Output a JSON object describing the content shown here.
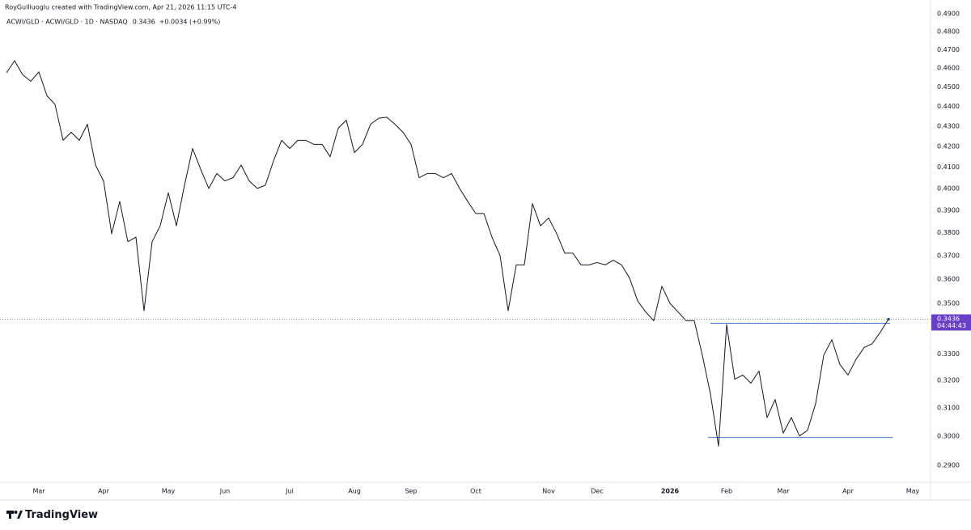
{
  "header": {
    "attribution": "RoyGulliuoglu created with TradingView.com, Apr 21, 2026 11:15 UTC-4"
  },
  "footer": {
    "logo": "TradingView"
  },
  "chart_data": {
    "type": "line",
    "legend_symbol": "ACWI/GLD · ACWI/GLD · 1D · NASDAQ",
    "legend_change": "+0.0034 (+0.99%)",
    "countdown": "04:44:43",
    "log_scale": true,
    "grid": false,
    "categories": [
      null,
      null,
      null,
      null,
      "Mar",
      null,
      null,
      null,
      null,
      null,
      null,
      null,
      "Apr",
      null,
      null,
      null,
      null,
      null,
      null,
      null,
      "May",
      null,
      null,
      null,
      null,
      null,
      null,
      "Jun",
      null,
      null,
      null,
      null,
      null,
      null,
      null,
      "Jul",
      null,
      null,
      null,
      null,
      null,
      null,
      null,
      "Aug",
      null,
      null,
      null,
      null,
      null,
      null,
      "Sep",
      null,
      null,
      null,
      null,
      null,
      null,
      null,
      "Oct",
      null,
      null,
      null,
      null,
      null,
      null,
      null,
      null,
      "Nov",
      null,
      null,
      null,
      null,
      null,
      "Dec",
      null,
      null,
      null,
      null,
      null,
      null,
      null,
      null,
      "2026",
      null,
      null,
      null,
      null,
      null,
      null,
      "Feb",
      null,
      null,
      null,
      null,
      null,
      null,
      "Mar",
      null,
      null,
      null,
      null,
      null,
      null,
      null,
      "Apr",
      null,
      null,
      null,
      null,
      null,
      null,
      null,
      "May"
    ],
    "series": [
      {
        "name": "ACWI/GLD",
        "color": "#131722",
        "values": [
          0.4575,
          0.464,
          0.4565,
          0.453,
          0.458,
          0.4455,
          0.441,
          0.423,
          0.427,
          0.423,
          0.431,
          0.411,
          0.4035,
          0.3795,
          0.394,
          0.376,
          0.378,
          0.347,
          0.376,
          0.383,
          0.398,
          0.383,
          0.4015,
          0.419,
          0.409,
          0.4,
          0.407,
          0.4035,
          0.405,
          0.411,
          0.4035,
          0.4,
          0.4015,
          0.413,
          0.423,
          0.419,
          0.423,
          0.423,
          0.421,
          0.421,
          0.415,
          0.429,
          0.433,
          0.417,
          0.421,
          0.431,
          0.434,
          0.4345,
          0.431,
          0.427,
          0.421,
          0.405,
          0.407,
          0.407,
          0.405,
          0.407,
          0.4,
          0.394,
          0.3885,
          0.3885,
          0.378,
          0.37,
          0.347,
          0.366,
          0.366,
          0.393,
          0.383,
          0.3865,
          0.3795,
          0.371,
          0.371,
          0.366,
          0.366,
          0.367,
          0.366,
          0.368,
          0.366,
          0.3605,
          0.351,
          0.3465,
          0.343,
          0.357,
          0.35,
          0.3465,
          0.343,
          0.343,
          0.3295,
          0.315,
          0.2965,
          0.3415,
          0.3205,
          0.322,
          0.319,
          0.3235,
          0.3065,
          0.313,
          0.301,
          0.3065,
          0.3,
          0.302,
          0.3115,
          0.3295,
          0.3355,
          0.326,
          0.322,
          0.328,
          0.3325,
          0.334,
          0.3385,
          0.3436,
          null,
          null,
          null
        ]
      }
    ],
    "levels": [
      {
        "value": 0.342,
        "color": "#4a72d4"
      },
      {
        "value": 0.2995,
        "color": "#4a72d4"
      }
    ],
    "badge_color": "#6a3fc7",
    "ylim": [
      0.2843,
      0.4979
    ],
    "yticks": [
      {
        "value": 0.49,
        "label": "0.4900"
      },
      {
        "value": 0.48,
        "label": "0.4800"
      },
      {
        "value": 0.47,
        "label": "0.4700"
      },
      {
        "value": 0.46,
        "label": "0.4600"
      },
      {
        "value": 0.45,
        "label": "0.4500"
      },
      {
        "value": 0.44,
        "label": "0.4400"
      },
      {
        "value": 0.43,
        "label": "0.4300"
      },
      {
        "value": 0.42,
        "label": "0.4200"
      },
      {
        "value": 0.41,
        "label": "0.4100"
      },
      {
        "value": 0.4,
        "label": "0.4000"
      },
      {
        "value": 0.39,
        "label": "0.3900"
      },
      {
        "value": 0.38,
        "label": "0.3800"
      },
      {
        "value": 0.37,
        "label": "0.3700"
      },
      {
        "value": 0.36,
        "label": "0.3600"
      },
      {
        "value": 0.35,
        "label": "0.3500"
      },
      {
        "value": 0.33,
        "label": "0.3300"
      },
      {
        "value": 0.32,
        "label": "0.3200"
      },
      {
        "value": 0.31,
        "label": "0.3100"
      },
      {
        "value": 0.3,
        "label": "0.3000"
      },
      {
        "value": 0.29,
        "label": "0.2900"
      }
    ]
  }
}
